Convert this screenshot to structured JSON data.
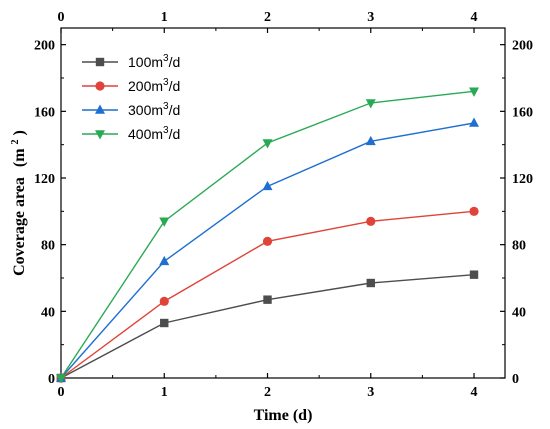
{
  "chart_data": {
    "type": "line",
    "x": [
      0,
      1,
      2,
      3,
      4
    ],
    "xlabel": "Time (d)",
    "ylabel": "Coverage area (m²)",
    "ylabel_main": "Coverage area",
    "ylabel_unit": "(m",
    "ylabel_sup": "2",
    "ylabel_close": ")",
    "xlim": [
      0,
      4.3
    ],
    "ylim": [
      0,
      210
    ],
    "xticks": [
      0,
      1,
      2,
      3,
      4
    ],
    "yticks": [
      0,
      40,
      80,
      120,
      160,
      200
    ],
    "xtick_labels": [
      "0",
      "1",
      "2",
      "3",
      "4"
    ],
    "ytick_labels": [
      "0",
      "40",
      "80",
      "120",
      "160",
      "200"
    ],
    "mirror_axes": true,
    "grid": false,
    "legend_position": "top-left",
    "series": [
      {
        "name": "100m³/d",
        "label_base": "100m",
        "label_sup": "3",
        "label_tail": "/d",
        "marker": "square",
        "color": "#4d4d4d",
        "values": [
          0,
          33,
          47,
          57,
          62
        ]
      },
      {
        "name": "200m³/d",
        "label_base": "200m",
        "label_sup": "3",
        "label_tail": "/d",
        "marker": "circle",
        "color": "#e0433a",
        "values": [
          0,
          46,
          82,
          94,
          100
        ]
      },
      {
        "name": "300m³/d",
        "label_base": "300m",
        "label_sup": "3",
        "label_tail": "/d",
        "marker": "triangle-up",
        "color": "#1f6fd1",
        "values": [
          0,
          70,
          115,
          142,
          153
        ]
      },
      {
        "name": "400m³/d",
        "label_base": "400m",
        "label_sup": "3",
        "label_tail": "/d",
        "marker": "triangle-down",
        "color": "#2aa955",
        "values": [
          0,
          94,
          141,
          165,
          172
        ]
      }
    ]
  }
}
